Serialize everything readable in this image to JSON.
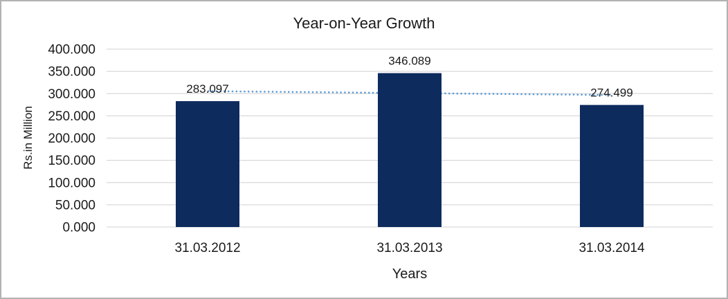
{
  "chart_data": {
    "type": "bar",
    "title": "Year-on-Year Growth",
    "xlabel": "Years",
    "ylabel": "Rs.in Million",
    "categories": [
      "31.03.2012",
      "31.03.2013",
      "31.03.2014"
    ],
    "values": [
      283.097,
      346.089,
      274.499
    ],
    "data_labels": [
      "283.097",
      "346.089",
      "274.499"
    ],
    "ylim": [
      0,
      400
    ],
    "ytick_step": 50,
    "ytick_labels": [
      "0.000",
      "50.000",
      "100.000",
      "150.000",
      "200.000",
      "250.000",
      "300.000",
      "350.000",
      "400.000"
    ],
    "grid": true,
    "legend": "none",
    "trendline": {
      "style": "dotted",
      "color": "#5b9bd5",
      "start_value": 305.5,
      "end_value": 296.9
    },
    "colors": {
      "bar": "#0e2b5e",
      "gridline": "#d9d9d9",
      "text": "#1a1a1a",
      "frame_border": "#b2b2b2",
      "background": "#ffffff"
    }
  }
}
